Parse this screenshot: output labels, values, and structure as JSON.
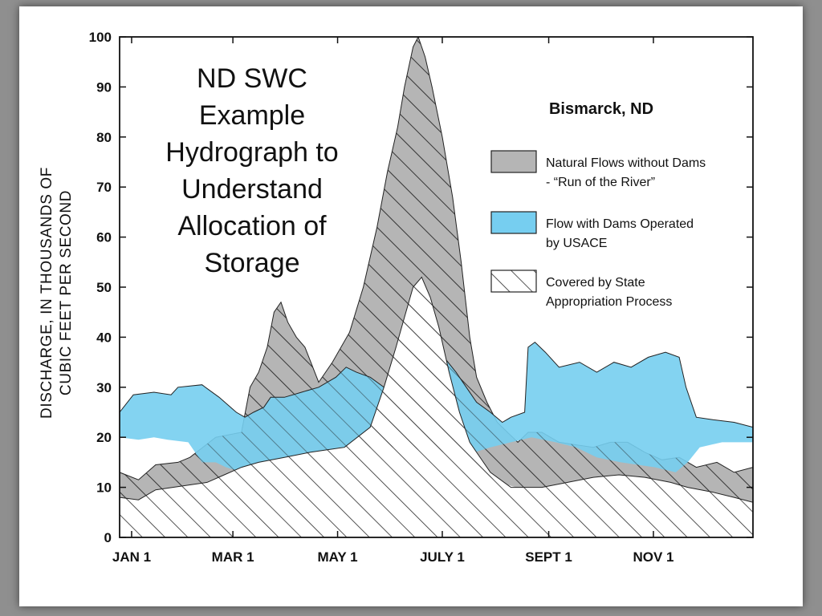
{
  "chart_data": {
    "type": "area",
    "title_lines": [
      "ND SWC",
      "Example",
      "Hydrograph to",
      "Understand",
      "Allocation of",
      "Storage"
    ],
    "location_label": "Bismarck, ND",
    "ylabel_lines": [
      "DISCHARGE, IN THOUSANDS OF",
      "CUBIC FEET PER SECOND"
    ],
    "x_tick_labels": [
      "JAN 1",
      "MAR 1",
      "MAY 1",
      "JULY 1",
      "SEPT 1",
      "NOV 1"
    ],
    "x_tick_days": [
      1,
      60,
      121,
      182,
      244,
      305
    ],
    "x_range_days": [
      -6,
      363
    ],
    "ylim": [
      0,
      100
    ],
    "y_ticks": [
      0,
      10,
      20,
      30,
      40,
      50,
      60,
      70,
      80,
      90,
      100
    ],
    "legend_position": "right",
    "legend": [
      {
        "label_lines": [
          "Natural Flows without Dams",
          "- “Run of the River”"
        ],
        "fill": "#b5b5b5",
        "hatch": false
      },
      {
        "label_lines": [
          "Flow with Dams Operated",
          "by USACE"
        ],
        "fill": "#76cef0",
        "hatch": false
      },
      {
        "label_lines": [
          "Covered by State",
          "Appropriation Process"
        ],
        "fill": "#ffffff",
        "hatch": true
      }
    ],
    "colors": {
      "natural": "#b5b5b5",
      "dams": "#76cef0",
      "state": "#ffffff",
      "hatch": "#2a2a2a",
      "line": "#222222"
    },
    "series": [
      {
        "name": "Natural Flows without Dams - “Run of the River”",
        "fill": "#b5b5b5",
        "hatch": true,
        "upper": [
          [
            -6,
            13
          ],
          [
            5,
            11.5
          ],
          [
            15,
            14.5
          ],
          [
            28,
            15
          ],
          [
            35,
            16
          ],
          [
            50,
            20
          ],
          [
            65,
            21
          ],
          [
            70,
            30
          ],
          [
            75,
            33
          ],
          [
            80,
            38
          ],
          [
            84,
            45
          ],
          [
            88,
            47
          ],
          [
            92,
            43
          ],
          [
            97,
            40
          ],
          [
            102,
            38
          ],
          [
            110,
            31
          ],
          [
            118,
            35
          ],
          [
            128,
            41
          ],
          [
            136,
            50
          ],
          [
            144,
            62
          ],
          [
            150,
            73
          ],
          [
            156,
            82
          ],
          [
            160,
            90
          ],
          [
            165,
            98
          ],
          [
            168,
            100
          ],
          [
            172,
            96
          ],
          [
            176,
            90
          ],
          [
            182,
            80
          ],
          [
            188,
            68
          ],
          [
            193,
            55
          ],
          [
            198,
            40
          ],
          [
            202,
            32
          ],
          [
            208,
            27
          ],
          [
            214,
            23
          ],
          [
            220,
            21
          ],
          [
            226,
            19
          ],
          [
            232,
            21
          ],
          [
            240,
            21
          ],
          [
            250,
            19
          ],
          [
            260,
            18.5
          ],
          [
            270,
            18
          ],
          [
            280,
            19
          ],
          [
            290,
            19
          ],
          [
            300,
            17
          ],
          [
            310,
            15.5
          ],
          [
            320,
            16
          ],
          [
            330,
            14
          ],
          [
            342,
            15
          ],
          [
            352,
            13
          ],
          [
            363,
            14
          ]
        ],
        "lower": [
          [
            -6,
            8
          ],
          [
            5,
            7.5
          ],
          [
            15,
            9.5
          ],
          [
            25,
            10
          ],
          [
            35,
            10.5
          ],
          [
            45,
            11
          ],
          [
            55,
            12.5
          ],
          [
            65,
            14
          ],
          [
            75,
            15
          ],
          [
            90,
            16
          ],
          [
            105,
            17
          ],
          [
            115,
            17.5
          ],
          [
            125,
            18
          ],
          [
            140,
            18
          ],
          [
            155,
            18
          ],
          [
            170,
            17.5
          ],
          [
            185,
            17
          ],
          [
            195,
            15.5
          ],
          [
            205,
            13
          ],
          [
            215,
            11
          ],
          [
            225,
            10
          ],
          [
            240,
            10
          ],
          [
            255,
            11
          ],
          [
            270,
            12
          ],
          [
            285,
            12.5
          ],
          [
            300,
            12
          ],
          [
            315,
            11
          ],
          [
            325,
            10
          ],
          [
            340,
            9
          ],
          [
            352,
            8
          ],
          [
            363,
            7
          ]
        ]
      },
      {
        "name": "Flow with Dams Operated by USACE",
        "fill": "#76cef0",
        "hatch": false,
        "upper": [
          [
            -6,
            25
          ],
          [
            2,
            28.5
          ],
          [
            14,
            29
          ],
          [
            24,
            28.5
          ],
          [
            28,
            30
          ],
          [
            42,
            30.5
          ],
          [
            52,
            28
          ],
          [
            62,
            25
          ],
          [
            67,
            24
          ],
          [
            72,
            25
          ],
          [
            78,
            26
          ],
          [
            82,
            28
          ],
          [
            90,
            28
          ],
          [
            100,
            29
          ],
          [
            110,
            30
          ],
          [
            120,
            32
          ],
          [
            126,
            34
          ],
          [
            132,
            33
          ],
          [
            140,
            32
          ],
          [
            148,
            30
          ],
          [
            155,
            32
          ],
          [
            162,
            33
          ],
          [
            170,
            35
          ],
          [
            178,
            37
          ],
          [
            183,
            36
          ],
          [
            190,
            33
          ],
          [
            196,
            30
          ],
          [
            202,
            27
          ],
          [
            210,
            25
          ],
          [
            217,
            23
          ],
          [
            222,
            24
          ],
          [
            230,
            25
          ],
          [
            232,
            38
          ],
          [
            236,
            39
          ],
          [
            242,
            37
          ],
          [
            250,
            34
          ],
          [
            262,
            35
          ],
          [
            272,
            33
          ],
          [
            282,
            35
          ],
          [
            292,
            34
          ],
          [
            302,
            36
          ],
          [
            312,
            37
          ],
          [
            320,
            36
          ],
          [
            324,
            30
          ],
          [
            330,
            24
          ],
          [
            340,
            23.5
          ],
          [
            352,
            23
          ],
          [
            363,
            22
          ]
        ],
        "lower": [
          [
            -6,
            20
          ],
          [
            5,
            19.5
          ],
          [
            14,
            20
          ],
          [
            22,
            19.5
          ],
          [
            34,
            19
          ],
          [
            42,
            15
          ],
          [
            50,
            15
          ],
          [
            56,
            14
          ],
          [
            66,
            13
          ],
          [
            70,
            11
          ],
          [
            76,
            11.5
          ],
          [
            90,
            11.5
          ],
          [
            104,
            12
          ],
          [
            110,
            17
          ],
          [
            122,
            18
          ],
          [
            140,
            18
          ],
          [
            160,
            18
          ],
          [
            180,
            17.5
          ],
          [
            196,
            16.5
          ],
          [
            210,
            18
          ],
          [
            222,
            19
          ],
          [
            234,
            20
          ],
          [
            248,
            19
          ],
          [
            260,
            18
          ],
          [
            272,
            16
          ],
          [
            286,
            15
          ],
          [
            296,
            14.5
          ],
          [
            306,
            14
          ],
          [
            318,
            13
          ],
          [
            325,
            15
          ],
          [
            332,
            18
          ],
          [
            345,
            19
          ],
          [
            363,
            19
          ]
        ]
      },
      {
        "name": "Covered by State Appropriation Process",
        "fill": "#ffffff",
        "hatch": true,
        "upper": [
          [
            -6,
            8
          ],
          [
            5,
            7.5
          ],
          [
            15,
            9.5
          ],
          [
            25,
            10
          ],
          [
            35,
            10.5
          ],
          [
            45,
            11
          ],
          [
            55,
            12.5
          ],
          [
            65,
            14
          ],
          [
            75,
            15
          ],
          [
            90,
            16
          ],
          [
            105,
            17
          ],
          [
            115,
            17.5
          ],
          [
            125,
            18
          ],
          [
            140,
            22
          ],
          [
            148,
            30
          ],
          [
            155,
            38
          ],
          [
            160,
            44
          ],
          [
            165,
            50
          ],
          [
            170,
            52
          ],
          [
            175,
            48
          ],
          [
            180,
            42
          ],
          [
            186,
            33
          ],
          [
            192,
            25
          ],
          [
            198,
            19
          ],
          [
            202,
            17
          ],
          [
            210,
            13
          ],
          [
            222,
            10
          ],
          [
            240,
            10
          ],
          [
            255,
            11
          ],
          [
            270,
            12
          ],
          [
            285,
            12.5
          ],
          [
            300,
            12
          ],
          [
            315,
            11
          ],
          [
            325,
            10
          ],
          [
            340,
            9
          ],
          [
            352,
            8
          ],
          [
            363,
            7
          ]
        ],
        "lower": [
          [
            -6,
            0
          ],
          [
            363,
            0
          ]
        ]
      }
    ]
  }
}
